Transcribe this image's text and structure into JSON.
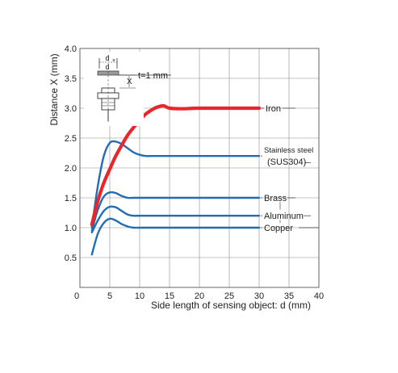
{
  "chart_data": {
    "type": "line",
    "xlabel": "Side length of sensing object: d (mm)",
    "ylabel": "Distance X (mm)",
    "xlim": [
      0,
      40
    ],
    "ylim": [
      0,
      4.0
    ],
    "xticks": [
      "0",
      "5",
      "10",
      "15",
      "20",
      "25",
      "30",
      "35",
      "40"
    ],
    "yticks": [
      "0.5",
      "1.0",
      "1.5",
      "2.0",
      "2.5",
      "3.0",
      "3.5",
      "4.0"
    ],
    "grid": true,
    "series": [
      {
        "name": "Iron",
        "color": "#e8262b",
        "x": [
          2,
          3,
          4,
          5,
          6,
          7,
          8,
          9,
          10,
          11,
          12,
          13,
          14,
          15,
          17,
          20,
          25,
          30
        ],
        "y": [
          1.05,
          1.45,
          1.75,
          1.98,
          2.2,
          2.38,
          2.55,
          2.68,
          2.8,
          2.9,
          2.97,
          3.02,
          3.04,
          3.0,
          2.99,
          3.0,
          3.0,
          3.0
        ]
      },
      {
        "name": "Stainless steel",
        "name_line2": "(SUS304)",
        "color": "#1f6db3",
        "x": [
          2,
          3,
          4,
          5,
          6,
          7,
          8,
          9,
          10,
          11,
          12,
          13,
          15,
          20,
          25,
          30
        ],
        "y": [
          1.0,
          1.7,
          2.2,
          2.42,
          2.44,
          2.4,
          2.33,
          2.26,
          2.22,
          2.2,
          2.2,
          2.2,
          2.2,
          2.2,
          2.2,
          2.2
        ]
      },
      {
        "name": "Brass",
        "color": "#1f6db3",
        "x": [
          2,
          3,
          4,
          5,
          6,
          7,
          8,
          9,
          10,
          12,
          15,
          20,
          25,
          30
        ],
        "y": [
          0.95,
          1.3,
          1.52,
          1.59,
          1.58,
          1.53,
          1.5,
          1.5,
          1.5,
          1.5,
          1.5,
          1.5,
          1.5,
          1.5
        ]
      },
      {
        "name": "Aluminum",
        "color": "#1f6db3",
        "x": [
          2,
          3,
          4,
          5,
          6,
          7,
          8,
          9,
          10,
          12,
          15,
          20,
          25,
          30
        ],
        "y": [
          0.92,
          1.12,
          1.28,
          1.35,
          1.34,
          1.28,
          1.22,
          1.2,
          1.2,
          1.2,
          1.2,
          1.2,
          1.2,
          1.2
        ]
      },
      {
        "name": "Copper",
        "color": "#1f6db3",
        "x": [
          2,
          3,
          4,
          5,
          6,
          7,
          8,
          9,
          10,
          12,
          15,
          20,
          25,
          30
        ],
        "y": [
          0.55,
          0.9,
          1.08,
          1.15,
          1.12,
          1.06,
          1.02,
          1.0,
          1.0,
          1.0,
          1.0,
          1.0,
          1.0,
          1.0
        ]
      }
    ]
  },
  "diagram": {
    "d_label": "d",
    "x_label": "X",
    "thickness_label": "t=1 mm"
  }
}
